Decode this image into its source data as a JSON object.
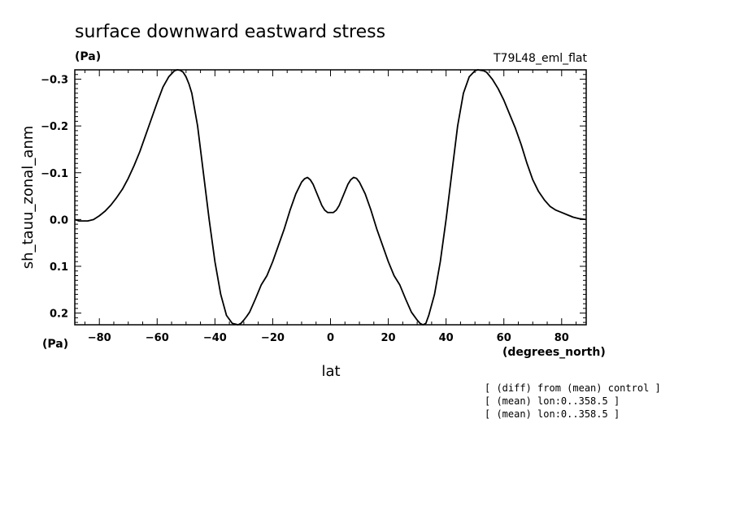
{
  "chart_data": {
    "type": "line",
    "title": "surface downward eastward stress",
    "title_units": "(Pa)",
    "experiment": "T79L48_eml_flat",
    "ylabel": "sh_tauu_zonal_anm",
    "yunits": "(Pa)",
    "xlabel": "lat",
    "xunits": "(degrees_north)",
    "xlim": [
      -88.5,
      88.5
    ],
    "ylim": [
      -0.32,
      0.225
    ],
    "y_inverted": true,
    "xticks": [
      -80,
      -60,
      -40,
      -20,
      0,
      20,
      40,
      60,
      80
    ],
    "xtick_labels": [
      "−80",
      "−60",
      "−40",
      "−20",
      "0",
      "20",
      "40",
      "60",
      "80"
    ],
    "yticks": [
      -0.3,
      -0.2,
      -0.1,
      0.0,
      0.1,
      0.2
    ],
    "ytick_labels": [
      "−0.3",
      "−0.2",
      "−0.1",
      "0.0",
      "0.1",
      "0.2"
    ],
    "grid": false,
    "line_color": "#000000",
    "series": [
      {
        "x": [
          -88.5,
          -87,
          -84,
          -82,
          -80,
          -78,
          -76,
          -74,
          -72,
          -70,
          -68,
          -66,
          -64,
          -62,
          -60,
          -58,
          -56,
          -54,
          -53,
          -52,
          -51,
          -50,
          -49,
          -48,
          -46,
          -44,
          -42,
          -40,
          -38,
          -36,
          -34,
          -32,
          -31,
          -30,
          -29,
          -28,
          -26,
          -24,
          -22,
          -20,
          -18,
          -16,
          -14,
          -12,
          -10,
          -9,
          -8,
          -7,
          -6,
          -5,
          -4,
          -3,
          -2,
          -1,
          0,
          1,
          2,
          3,
          4,
          5,
          6,
          7,
          8,
          9,
          10,
          12,
          14,
          16,
          18,
          20,
          22,
          24,
          26,
          28,
          30,
          31,
          32,
          33,
          34,
          36,
          38,
          40,
          42,
          44,
          46,
          48,
          50,
          51,
          52,
          53,
          54,
          56,
          58,
          60,
          62,
          64,
          66,
          68,
          70,
          72,
          74,
          76,
          78,
          80,
          82,
          84,
          86,
          88.5
        ],
        "y": [
          0.0,
          0.003,
          0.003,
          0.0,
          -0.008,
          -0.018,
          -0.031,
          -0.047,
          -0.065,
          -0.088,
          -0.115,
          -0.145,
          -0.18,
          -0.215,
          -0.25,
          -0.283,
          -0.305,
          -0.318,
          -0.32,
          -0.319,
          -0.315,
          -0.305,
          -0.29,
          -0.27,
          -0.2,
          -0.1,
          0.0,
          0.09,
          0.16,
          0.205,
          0.222,
          0.225,
          0.222,
          0.215,
          0.207,
          0.198,
          0.17,
          0.14,
          0.12,
          0.09,
          0.055,
          0.02,
          -0.02,
          -0.055,
          -0.08,
          -0.087,
          -0.09,
          -0.085,
          -0.075,
          -0.06,
          -0.045,
          -0.03,
          -0.02,
          -0.015,
          -0.015,
          -0.015,
          -0.02,
          -0.03,
          -0.045,
          -0.06,
          -0.075,
          -0.085,
          -0.09,
          -0.088,
          -0.08,
          -0.055,
          -0.02,
          0.02,
          0.055,
          0.09,
          0.12,
          0.14,
          0.17,
          0.198,
          0.215,
          0.222,
          0.225,
          0.222,
          0.205,
          0.16,
          0.09,
          0.0,
          -0.1,
          -0.2,
          -0.27,
          -0.305,
          -0.318,
          -0.32,
          -0.319,
          -0.318,
          -0.315,
          -0.3,
          -0.28,
          -0.255,
          -0.225,
          -0.195,
          -0.16,
          -0.12,
          -0.085,
          -0.06,
          -0.042,
          -0.028,
          -0.02,
          -0.015,
          -0.01,
          -0.005,
          -0.002,
          0.0
        ]
      }
    ]
  },
  "notes": [
    "[ (diff) from (mean) control ]",
    "[ (mean) lon:0..358.5 ]",
    "[ (mean) lon:0..358.5 ]"
  ]
}
